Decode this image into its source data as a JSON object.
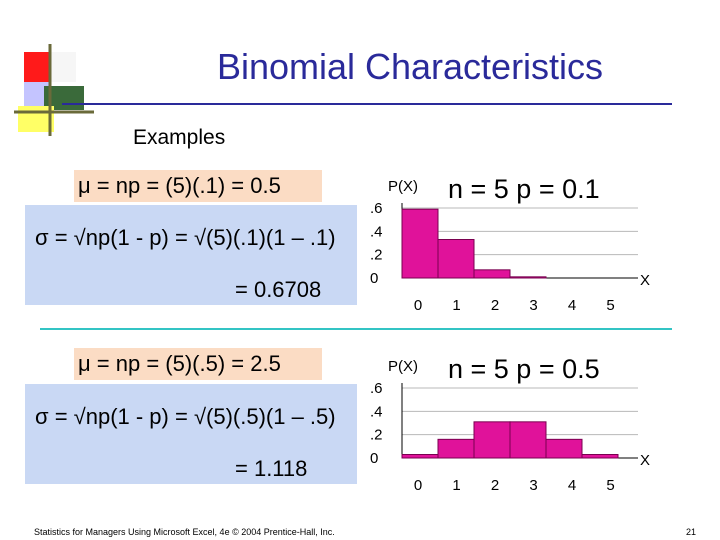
{
  "slide": {
    "title": "Binomial Characteristics",
    "subtitle": "Examples",
    "footer": "Statistics for Managers Using Microsoft Excel, 4e © 2004 Prentice-Hall, Inc.",
    "page_number": "21",
    "colors": {
      "title": "#2a2a9a",
      "bar": "#e0129a",
      "formula_bg": "#c9d8f4",
      "mean_bg": "#fbdcc4",
      "divider": "#33c4c4"
    }
  },
  "example1": {
    "mean_formula": "μ = np = (5)(.1) = 0.5",
    "sd_formula": "σ = √np(1 - p) = √(5)(.1)(1 – .1)",
    "sd_result": "= 0.6708",
    "chart_title": "n = 5  p = 0.1"
  },
  "example2": {
    "mean_formula": "μ = np = (5)(.5) = 2.5",
    "sd_formula": "σ = √np(1 - p) = √(5)(.5)(1 – .5)",
    "sd_result": "= 1.118",
    "chart_title": "n = 5  p = 0.5"
  },
  "chart_data": [
    {
      "type": "bar",
      "title": "n = 5  p = 0.1",
      "ylabel": "P(X)",
      "xlabel": "X",
      "categories": [
        "0",
        "1",
        "2",
        "3",
        "4",
        "5"
      ],
      "values": [
        0.59,
        0.33,
        0.07,
        0.01,
        0.0,
        0.0
      ],
      "yticks": [
        ".6",
        ".4",
        ".2",
        "0"
      ],
      "ylim": [
        0,
        0.6
      ],
      "grid": true
    },
    {
      "type": "bar",
      "title": "n = 5  p = 0.5",
      "ylabel": "P(X)",
      "xlabel": "X",
      "categories": [
        "0",
        "1",
        "2",
        "3",
        "4",
        "5"
      ],
      "values": [
        0.03,
        0.16,
        0.31,
        0.31,
        0.16,
        0.03
      ],
      "yticks": [
        ".6",
        ".4",
        ".2",
        "0"
      ],
      "ylim": [
        0,
        0.6
      ],
      "grid": true
    }
  ]
}
